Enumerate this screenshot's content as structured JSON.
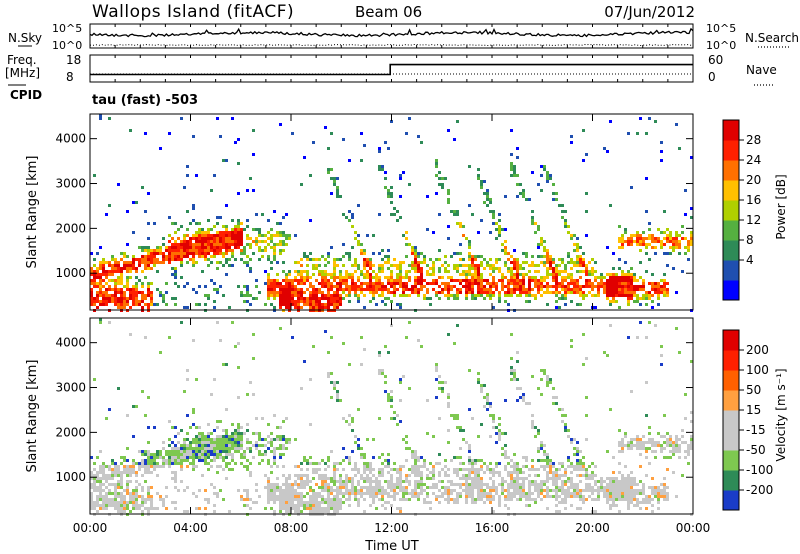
{
  "header": {
    "station": "Wallops Island (fitACF)",
    "beam": "Beam 06",
    "date": "07/Jun/2012"
  },
  "summary_panels": {
    "nsky_label": "N.Sky",
    "nsky_ticks": [
      "10^5",
      "10^0"
    ],
    "nsearch_label": "N.Search",
    "nsearch_ticks": [
      "10^5",
      "10^0"
    ],
    "freq_label": "Freq.",
    "freq_unit": "[MHz]",
    "freq_ticks": [
      "18",
      "8"
    ],
    "nave_label": "Nave",
    "nave_ticks": [
      "60",
      "0"
    ],
    "cpid_label": "CPID",
    "cpid_value": "tau (fast) -503"
  },
  "chart_data": [
    {
      "type": "heatmap",
      "panel": "power",
      "ylabel": "Slant Range [km]",
      "yticks": [
        "4000",
        "3000",
        "2000",
        "1000"
      ],
      "ytick_values": [
        4000,
        3000,
        2000,
        1000
      ],
      "ylim": [
        180,
        4550
      ],
      "xlim_hours": [
        0,
        24
      ],
      "colorbar_label": "Power [dB]",
      "colorbar_ticks": [
        "28",
        "24",
        "20",
        "16",
        "12",
        "8",
        "4"
      ],
      "colorbar_colors": [
        "#0000ff",
        "#1f4fb0",
        "#2e8b57",
        "#55b040",
        "#b0d000",
        "#ffc000",
        "#ff7000",
        "#ff2000",
        "#e00000"
      ]
    },
    {
      "type": "heatmap",
      "panel": "velocity",
      "ylabel": "Slant Range [km]",
      "yticks": [
        "4000",
        "3000",
        "2000",
        "1000"
      ],
      "ytick_values": [
        4000,
        3000,
        2000,
        1000
      ],
      "ylim": [
        180,
        4550
      ],
      "xlim_hours": [
        0,
        24
      ],
      "colorbar_label": "Velocity [m s⁻¹]",
      "colorbar_ticks": [
        "200",
        "100",
        "50",
        "15",
        "-15",
        "-50",
        "-100",
        "-200"
      ],
      "colorbar_colors": [
        "#1a3cc8",
        "#2e8b57",
        "#7ec850",
        "#c8c8c8",
        "#c8c8c8",
        "#ffa040",
        "#ff6000",
        "#ff2000",
        "#e00000"
      ]
    }
  ],
  "xaxis": {
    "label": "Time UT",
    "ticks": [
      "00:00",
      "04:00",
      "08:00",
      "12:00",
      "16:00",
      "20:00",
      "00:00"
    ],
    "tick_hours": [
      0,
      4,
      8,
      12,
      16,
      20,
      24
    ]
  },
  "freq_series": {
    "hours": [
      0,
      11.95,
      11.95,
      24
    ],
    "values": [
      11.5,
      11.5,
      15.2,
      15.2
    ]
  }
}
